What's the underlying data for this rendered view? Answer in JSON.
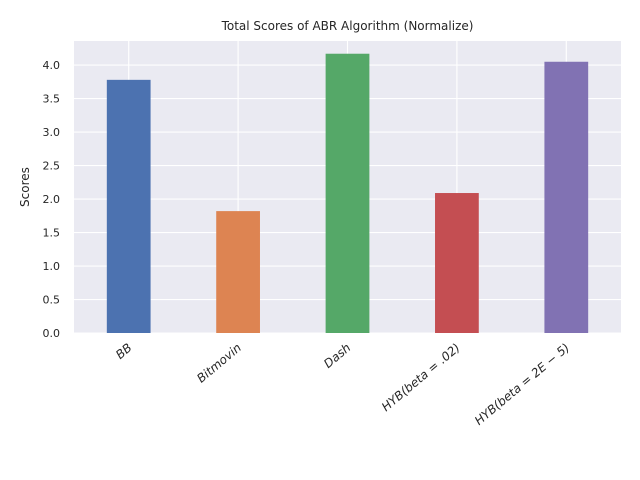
{
  "chart_data": {
    "type": "bar",
    "title": "Total Scores of ABR Algorithm (Normalize)",
    "xlabel": "",
    "ylabel": "Scores",
    "categories": [
      "BB",
      "Bitmovin",
      "Dash",
      "HYB(beta=.02)",
      "HYB(beta=2E-5)"
    ],
    "category_labels": [
      "BB",
      "Bitmovin",
      "Dash",
      "HYB(beta = .02)",
      "HYB(beta = 2E − 5)"
    ],
    "values": [
      3.78,
      1.82,
      4.17,
      2.09,
      4.05
    ],
    "colors": [
      "#4c72b0",
      "#dd8452",
      "#55a868",
      "#c44e52",
      "#8172b3"
    ],
    "ylim": [
      0,
      4.36
    ],
    "yticks": [
      "0.0",
      "0.5",
      "1.0",
      "1.5",
      "2.0",
      "2.5",
      "3.0",
      "3.5",
      "4.0"
    ],
    "grid": true,
    "legend": "none",
    "background": "#eaeaf2"
  }
}
